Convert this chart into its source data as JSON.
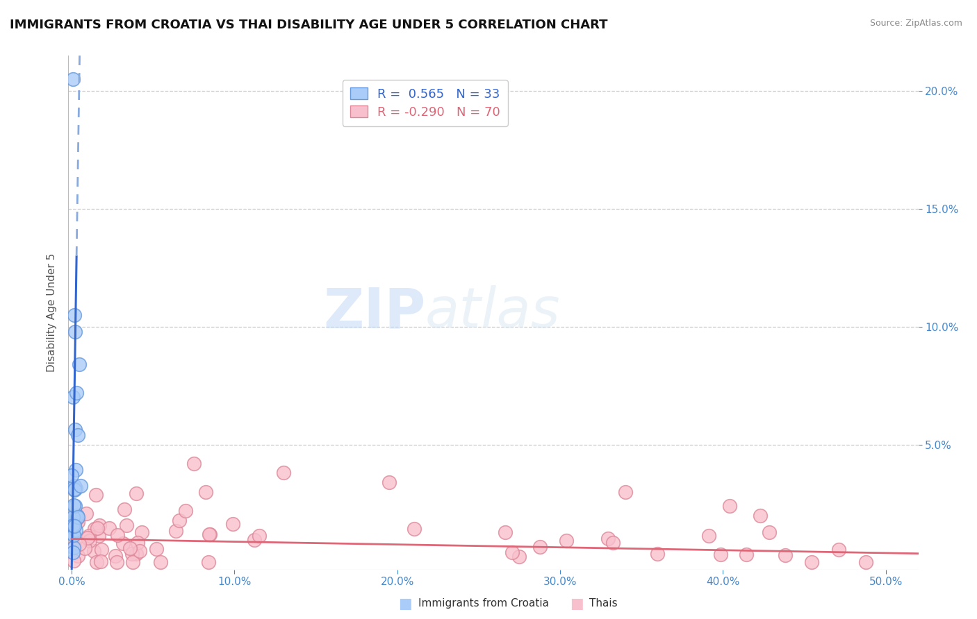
{
  "title": "IMMIGRANTS FROM CROATIA VS THAI DISABILITY AGE UNDER 5 CORRELATION CHART",
  "source": "Source: ZipAtlas.com",
  "ylabel": "Disability Age Under 5",
  "y_ticks_right_vals": [
    0.05,
    0.1,
    0.15,
    0.2
  ],
  "xlim": [
    -0.002,
    0.52
  ],
  "ylim": [
    -0.003,
    0.215
  ],
  "series": [
    {
      "name": "Immigrants from Croatia",
      "R": 0.565,
      "N": 33,
      "marker_color": "#aaccf8",
      "edge_color": "#6699dd",
      "line_color": "#3366cc",
      "line_color_dashed": "#88aadd"
    },
    {
      "name": "Thais",
      "R": -0.29,
      "N": 70,
      "marker_color": "#f8c0cc",
      "edge_color": "#dd8899",
      "line_color": "#dd6677"
    }
  ],
  "watermark_zip": "ZIP",
  "watermark_atlas": "atlas",
  "background_color": "#ffffff",
  "legend_R_color": "#3366cc",
  "legend_N_color": "#3366cc",
  "legend_R2_color": "#dd6677",
  "legend_N2_color": "#dd6677"
}
